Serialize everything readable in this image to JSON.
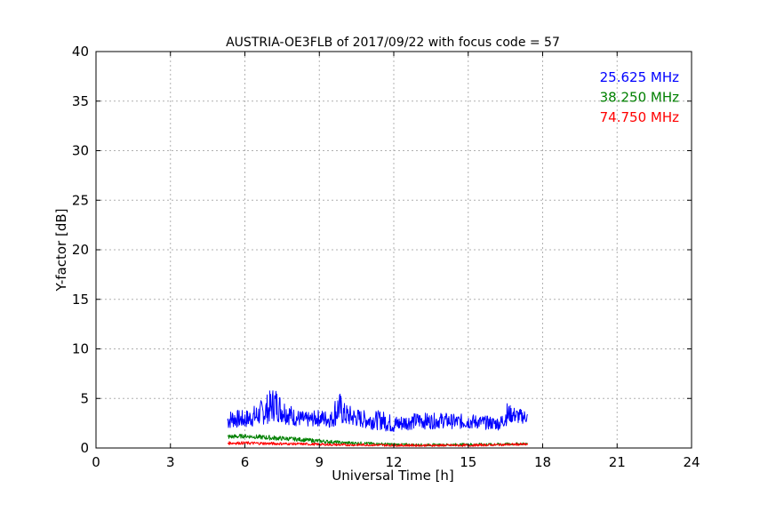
{
  "chart_data": {
    "type": "line",
    "title": "AUSTRIA-OE3FLB of 2017/09/22 with focus code = 57",
    "xlabel": "Universal Time [h]",
    "ylabel": "Y-factor [dB]",
    "xlim": [
      0,
      24
    ],
    "ylim": [
      0,
      40
    ],
    "xticks": [
      0,
      3,
      6,
      9,
      12,
      15,
      18,
      21,
      24
    ],
    "yticks": [
      0,
      5,
      10,
      15,
      20,
      25,
      30,
      35,
      40
    ],
    "grid": true,
    "legend_position": "top-right",
    "series": [
      {
        "name": "25.625 MHz",
        "color": "#0000ff",
        "x": [
          5.3,
          5.5,
          6.0,
          6.5,
          7.0,
          7.2,
          7.3,
          7.5,
          7.8,
          8.0,
          8.5,
          9.0,
          9.5,
          9.7,
          9.8,
          10.0,
          10.5,
          11.0,
          11.5,
          11.8,
          12.0,
          12.5,
          13.0,
          13.5,
          14.0,
          14.5,
          15.0,
          15.5,
          16.0,
          16.3,
          16.5,
          16.7,
          17.0,
          17.4
        ],
        "y": [
          2.8,
          3.0,
          2.8,
          3.2,
          3.8,
          4.5,
          4.2,
          3.8,
          3.4,
          3.0,
          2.8,
          3.0,
          2.9,
          3.6,
          4.0,
          3.3,
          3.0,
          2.8,
          2.9,
          2.6,
          2.3,
          2.6,
          2.8,
          2.7,
          2.8,
          2.6,
          2.7,
          2.6,
          2.5,
          2.4,
          3.0,
          3.5,
          3.2,
          3.1
        ],
        "y_low": [
          1.8,
          2.0,
          2.0,
          2.2,
          2.5,
          2.7,
          2.6,
          2.5,
          2.3,
          2.2,
          2.1,
          2.2,
          2.0,
          2.3,
          2.5,
          2.2,
          2.1,
          1.9,
          1.8,
          1.6,
          1.5,
          1.8,
          1.9,
          1.9,
          2.0,
          1.9,
          1.9,
          1.9,
          1.8,
          1.8,
          2.2,
          2.5,
          2.4,
          2.5
        ],
        "y_high": [
          3.8,
          3.9,
          3.8,
          4.5,
          5.8,
          6.4,
          6.0,
          5.2,
          4.5,
          4.0,
          3.6,
          3.9,
          3.8,
          6.0,
          5.8,
          4.6,
          4.0,
          3.7,
          3.8,
          3.5,
          3.3,
          3.4,
          3.6,
          3.5,
          3.6,
          3.4,
          3.5,
          3.3,
          3.2,
          3.2,
          4.8,
          4.3,
          4.0,
          3.8
        ]
      },
      {
        "name": "38.250 MHz",
        "color": "#008000",
        "x": [
          5.3,
          6.0,
          7.0,
          8.0,
          9.0,
          10.0,
          11.0,
          12.0,
          13.0,
          14.0,
          15.0,
          16.0,
          17.0,
          17.4
        ],
        "y": [
          1.1,
          1.2,
          1.0,
          0.9,
          0.7,
          0.5,
          0.45,
          0.35,
          0.3,
          0.3,
          0.35,
          0.35,
          0.4,
          0.4
        ],
        "y_low": [
          0.9,
          1.0,
          0.8,
          0.7,
          0.5,
          0.4,
          0.35,
          0.25,
          0.2,
          0.2,
          0.25,
          0.25,
          0.3,
          0.3
        ],
        "y_high": [
          1.4,
          1.4,
          1.3,
          1.1,
          0.9,
          0.7,
          0.6,
          0.5,
          0.45,
          0.45,
          0.5,
          0.5,
          0.55,
          0.55
        ]
      },
      {
        "name": "74.750 MHz",
        "color": "#ff0000",
        "x": [
          5.3,
          6.0,
          7.0,
          8.0,
          9.0,
          10.0,
          11.0,
          12.0,
          13.0,
          14.0,
          15.0,
          16.0,
          17.0,
          17.4
        ],
        "y": [
          0.5,
          0.5,
          0.45,
          0.4,
          0.35,
          0.3,
          0.3,
          0.25,
          0.25,
          0.25,
          0.25,
          0.3,
          0.35,
          0.35
        ],
        "y_low": [
          0.35,
          0.35,
          0.3,
          0.3,
          0.25,
          0.2,
          0.2,
          0.15,
          0.15,
          0.15,
          0.15,
          0.2,
          0.25,
          0.25
        ],
        "y_high": [
          0.65,
          0.65,
          0.6,
          0.55,
          0.5,
          0.45,
          0.45,
          0.4,
          0.4,
          0.4,
          0.4,
          0.45,
          0.5,
          0.5
        ]
      }
    ]
  }
}
